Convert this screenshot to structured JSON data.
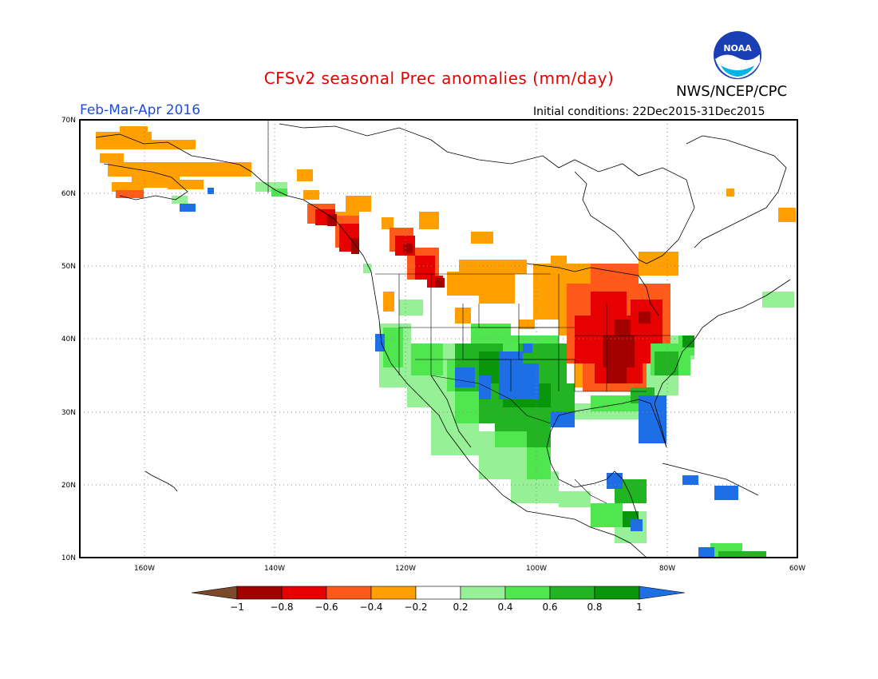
{
  "title": "CFSv2 seasonal Prec anomalies (mm/day)",
  "agency": "NWS/NCEP/CPC",
  "logo_text": "NOAA",
  "season": "Feb-Mar-Apr 2016",
  "initial_conditions": "Initial conditions: 22Dec2015-31Dec2015",
  "map": {
    "lat_labels": [
      "70N",
      "60N",
      "50N",
      "40N",
      "30N",
      "20N",
      "10N"
    ],
    "lon_labels": [
      "160W",
      "140W",
      "120W",
      "100W",
      "80W",
      "60W"
    ],
    "grid": "dotted"
  },
  "colorbar": {
    "ticks": [
      "-1",
      "-0.8",
      "-0.6",
      "-0.4",
      "-0.2",
      "0.2",
      "0.4",
      "0.6",
      "0.8",
      "1"
    ],
    "colors": {
      "below_min": "#7a4a2a",
      "bins": [
        "#a50000",
        "#e60000",
        "#ff5a19",
        "#ffa000",
        "#ffffff",
        "#96f096",
        "#50e650",
        "#23b423",
        "#0a960a"
      ],
      "above_max": "#1e6ee6"
    }
  },
  "anomaly_regions": [
    {
      "name": "Alaska",
      "category": "-0.4 to -0.2"
    },
    {
      "name": "Pacific Northwest coast",
      "category": "-0.8 to -0.4"
    },
    {
      "name": "Ohio Valley and Great Lakes",
      "category": "-0.8 to -0.4"
    },
    {
      "name": "Southwest US and Mexico",
      "category": "0.2 to 1"
    },
    {
      "name": "Southern Plains and Florida",
      "category": "above 1"
    }
  ]
}
